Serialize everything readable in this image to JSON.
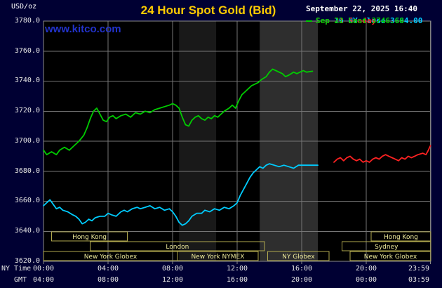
{
  "header": {
    "unit_label": "USD/oz",
    "title": "24 Hour Spot Gold (Bid)",
    "datetime": "September 22, 2025 16:40",
    "watermark": "www.kitco.com",
    "legend": [
      {
        "label": "Sep 19 NY close 3684.00",
        "color": "#00ccff"
      },
      {
        "label": "Sep 21 Sunday",
        "color": "#ff2222"
      },
      {
        "label": "Sep 22 Last 3746.60",
        "color": "#00cc00"
      }
    ]
  },
  "axes": {
    "y_labels": [
      "3780.0",
      "3760.0",
      "3740.0",
      "3720.0",
      "3700.0",
      "3680.0",
      "3660.0",
      "3640.0",
      "3620.0"
    ],
    "x_ny_label": "NY Time",
    "x_gmt_label": "GMT",
    "x_ny": [
      "00:00",
      "04:00",
      "08:00",
      "12:00",
      "16:00",
      "20:00",
      "23:59"
    ],
    "x_gmt": [
      "04:00",
      "08:00",
      "12:00",
      "16:00",
      "20:00",
      "00:00",
      "03:59"
    ]
  },
  "sessions": [
    {
      "row": 0,
      "label": "Hong Kong",
      "start": 0.5,
      "end": 5.2
    },
    {
      "row": 0,
      "label": "Hong Kong",
      "start": 20.3,
      "end": 24
    },
    {
      "row": 1,
      "label": "London",
      "start": 2.9,
      "end": 13.7
    },
    {
      "row": 1,
      "label": "Sydney",
      "start": 18.5,
      "end": 24
    },
    {
      "row": 2,
      "label": "New York Globex",
      "start": 0,
      "end": 8.3
    },
    {
      "row": 2,
      "label": "New York NYMEX",
      "start": 8.3,
      "end": 13.3
    },
    {
      "row": 2,
      "label": "NY Globex",
      "start": 13.9,
      "end": 17.7
    },
    {
      "row": 2,
      "label": "New York Globex",
      "start": 19.0,
      "end": 24
    }
  ],
  "chart_data": {
    "type": "line",
    "title": "24 Hour Spot Gold (Bid)",
    "ylabel": "USD/oz",
    "ylim": [
      3620,
      3780
    ],
    "y_tick_step": 20,
    "x_hours_range": [
      0,
      24
    ],
    "x_tick_hours": [
      0,
      4,
      8,
      12,
      16,
      20,
      23.983
    ],
    "x_tick_labels_ny": [
      "00:00",
      "04:00",
      "08:00",
      "12:00",
      "16:00",
      "20:00",
      "23:59"
    ],
    "x_tick_labels_gmt": [
      "04:00",
      "08:00",
      "12:00",
      "16:00",
      "20:00",
      "00:00",
      "03:59"
    ],
    "grid": true,
    "legend_position": "top-right",
    "bands": [
      {
        "start": 8.4,
        "end": 10.7,
        "color": "#191919"
      },
      {
        "start": 13.4,
        "end": 17.0,
        "color": "#2e2e2e"
      }
    ],
    "series": [
      {
        "name": "Sep 19 NY close 3684.00",
        "color": "#00ccff",
        "points": [
          [
            0,
            3657
          ],
          [
            0.2,
            3659
          ],
          [
            0.4,
            3661
          ],
          [
            0.6,
            3658
          ],
          [
            0.8,
            3655
          ],
          [
            1,
            3656
          ],
          [
            1.2,
            3654
          ],
          [
            1.5,
            3653
          ],
          [
            1.8,
            3651
          ],
          [
            2,
            3650
          ],
          [
            2.2,
            3648
          ],
          [
            2.4,
            3645
          ],
          [
            2.6,
            3646
          ],
          [
            2.8,
            3648
          ],
          [
            3,
            3647
          ],
          [
            3.2,
            3649
          ],
          [
            3.5,
            3650
          ],
          [
            3.8,
            3650
          ],
          [
            4,
            3652
          ],
          [
            4.2,
            3651
          ],
          [
            4.5,
            3650
          ],
          [
            4.8,
            3653
          ],
          [
            5,
            3654
          ],
          [
            5.2,
            3653
          ],
          [
            5.5,
            3655
          ],
          [
            5.8,
            3656
          ],
          [
            6,
            3655
          ],
          [
            6.3,
            3656
          ],
          [
            6.6,
            3657
          ],
          [
            6.9,
            3655
          ],
          [
            7.2,
            3656
          ],
          [
            7.5,
            3654
          ],
          [
            7.8,
            3655
          ],
          [
            8,
            3653
          ],
          [
            8.2,
            3650
          ],
          [
            8.4,
            3646
          ],
          [
            8.6,
            3644
          ],
          [
            8.8,
            3645
          ],
          [
            9,
            3647
          ],
          [
            9.2,
            3650
          ],
          [
            9.5,
            3652
          ],
          [
            9.8,
            3652
          ],
          [
            10,
            3654
          ],
          [
            10.3,
            3653
          ],
          [
            10.6,
            3655
          ],
          [
            10.9,
            3654
          ],
          [
            11.2,
            3656
          ],
          [
            11.5,
            3655
          ],
          [
            11.8,
            3657
          ],
          [
            12,
            3659
          ],
          [
            12.2,
            3664
          ],
          [
            12.4,
            3668
          ],
          [
            12.6,
            3672
          ],
          [
            12.8,
            3676
          ],
          [
            13,
            3679
          ],
          [
            13.2,
            3681
          ],
          [
            13.4,
            3683
          ],
          [
            13.6,
            3682
          ],
          [
            13.8,
            3684
          ],
          [
            14,
            3685
          ],
          [
            14.3,
            3684
          ],
          [
            14.6,
            3683
          ],
          [
            14.9,
            3684
          ],
          [
            15.2,
            3683
          ],
          [
            15.5,
            3682
          ],
          [
            15.8,
            3684
          ],
          [
            16.1,
            3684
          ],
          [
            16.5,
            3684
          ],
          [
            17,
            3684
          ]
        ]
      },
      {
        "name": "Sep 21 Sunday",
        "color": "#ff2222",
        "points": [
          [
            18,
            3686
          ],
          [
            18.2,
            3688
          ],
          [
            18.4,
            3689
          ],
          [
            18.6,
            3687
          ],
          [
            18.8,
            3689
          ],
          [
            19,
            3690
          ],
          [
            19.2,
            3688
          ],
          [
            19.4,
            3687
          ],
          [
            19.6,
            3688
          ],
          [
            19.8,
            3686
          ],
          [
            20,
            3687
          ],
          [
            20.2,
            3686
          ],
          [
            20.4,
            3688
          ],
          [
            20.6,
            3689
          ],
          [
            20.8,
            3688
          ],
          [
            21,
            3690
          ],
          [
            21.2,
            3691
          ],
          [
            21.4,
            3690
          ],
          [
            21.6,
            3689
          ],
          [
            21.8,
            3688
          ],
          [
            22,
            3687
          ],
          [
            22.2,
            3689
          ],
          [
            22.4,
            3688
          ],
          [
            22.6,
            3690
          ],
          [
            22.8,
            3689
          ],
          [
            23,
            3690
          ],
          [
            23.2,
            3691
          ],
          [
            23.5,
            3692
          ],
          [
            23.7,
            3691
          ],
          [
            23.85,
            3694
          ],
          [
            23.98,
            3697
          ]
        ]
      },
      {
        "name": "Sep 22 Last 3746.60",
        "color": "#00cc00",
        "points": [
          [
            0,
            3694
          ],
          [
            0.2,
            3691
          ],
          [
            0.5,
            3693
          ],
          [
            0.8,
            3691
          ],
          [
            1,
            3694
          ],
          [
            1.3,
            3696
          ],
          [
            1.6,
            3694
          ],
          [
            1.9,
            3697
          ],
          [
            2.2,
            3700
          ],
          [
            2.5,
            3704
          ],
          [
            2.7,
            3709
          ],
          [
            2.9,
            3715
          ],
          [
            3.1,
            3720
          ],
          [
            3.3,
            3722
          ],
          [
            3.5,
            3718
          ],
          [
            3.7,
            3714
          ],
          [
            3.9,
            3713
          ],
          [
            4.1,
            3716
          ],
          [
            4.3,
            3717
          ],
          [
            4.5,
            3715
          ],
          [
            4.8,
            3717
          ],
          [
            5.1,
            3718
          ],
          [
            5.4,
            3716
          ],
          [
            5.7,
            3719
          ],
          [
            6,
            3718
          ],
          [
            6.3,
            3720
          ],
          [
            6.6,
            3719
          ],
          [
            6.9,
            3721
          ],
          [
            7.2,
            3722
          ],
          [
            7.5,
            3723
          ],
          [
            7.8,
            3724
          ],
          [
            8,
            3725
          ],
          [
            8.2,
            3724
          ],
          [
            8.4,
            3722
          ],
          [
            8.6,
            3716
          ],
          [
            8.8,
            3711
          ],
          [
            9,
            3710
          ],
          [
            9.2,
            3714
          ],
          [
            9.4,
            3716
          ],
          [
            9.6,
            3717
          ],
          [
            9.8,
            3715
          ],
          [
            10,
            3714
          ],
          [
            10.2,
            3716
          ],
          [
            10.4,
            3715
          ],
          [
            10.6,
            3717
          ],
          [
            10.8,
            3716
          ],
          [
            11,
            3718
          ],
          [
            11.2,
            3720
          ],
          [
            11.5,
            3722
          ],
          [
            11.7,
            3724
          ],
          [
            11.9,
            3722
          ],
          [
            12.1,
            3727
          ],
          [
            12.3,
            3731
          ],
          [
            12.5,
            3733
          ],
          [
            12.7,
            3735
          ],
          [
            12.9,
            3737
          ],
          [
            13.1,
            3738
          ],
          [
            13.3,
            3739
          ],
          [
            13.5,
            3741
          ],
          [
            13.8,
            3743
          ],
          [
            14,
            3746
          ],
          [
            14.2,
            3748
          ],
          [
            14.4,
            3747
          ],
          [
            14.6,
            3746
          ],
          [
            14.8,
            3745
          ],
          [
            15,
            3743
          ],
          [
            15.2,
            3744
          ],
          [
            15.5,
            3746
          ],
          [
            15.7,
            3745
          ],
          [
            15.9,
            3746
          ],
          [
            16.1,
            3747
          ],
          [
            16.3,
            3746
          ],
          [
            16.67,
            3746.6
          ]
        ]
      }
    ]
  }
}
